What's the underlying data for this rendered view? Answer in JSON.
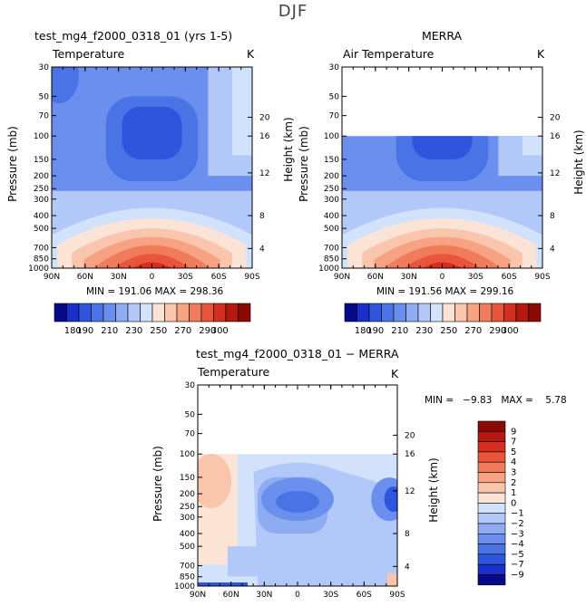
{
  "suptitle": "DJF",
  "palette_abs": [
    "#08088a",
    "#1a2fc8",
    "#2f55dd",
    "#4a73e6",
    "#6a8fee",
    "#8facf3",
    "#b2c8f8",
    "#d3e2fb",
    "#fbe4d6",
    "#f9c6ad",
    "#f6a283",
    "#f17c5c",
    "#e8553a",
    "#d42e1f",
    "#b51810",
    "#8b0a05"
  ],
  "palette_diff": [
    "#08088a",
    "#1a2fc8",
    "#2f55dd",
    "#4a73e6",
    "#6a8fee",
    "#8facf3",
    "#b2c8f8",
    "#d3e2fb",
    "#fbe4d6",
    "#f9c6ad",
    "#f6a283",
    "#f17c5c",
    "#e8553a",
    "#d42e1f",
    "#b51810",
    "#8b0a05"
  ],
  "chart_data": [
    {
      "type": "heatmap",
      "title": "test_mg4_f2000_0318_01 (yrs 1-5)",
      "subtitle_left": "Temperature",
      "subtitle_right": "K",
      "ylabel": "Pressure (mb)",
      "ylabel_right": "Height (km)",
      "x_ticks": [
        "90N",
        "60N",
        "30N",
        "0",
        "30S",
        "60S",
        "90S"
      ],
      "y_ticks": [
        "30",
        "50",
        "70",
        "100",
        "150",
        "200",
        "250",
        "300",
        "400",
        "500",
        "700",
        "850",
        "1000"
      ],
      "y_ticks_right": [
        "20",
        "16",
        "12",
        "8",
        "4"
      ],
      "min_max": "MIN = 191.06   MAX = 298.36",
      "colorbar_labels": [
        "180",
        "190",
        "210",
        "230",
        "250",
        "270",
        "290",
        "300"
      ]
    },
    {
      "type": "heatmap",
      "title": "MERRA",
      "subtitle_left": "Air Temperature",
      "subtitle_right": "K",
      "ylabel": "Pressure (mb)",
      "ylabel_right": "Height (km)",
      "x_ticks": [
        "90N",
        "60N",
        "30N",
        "0",
        "30S",
        "60S",
        "90S"
      ],
      "y_ticks": [
        "30",
        "50",
        "70",
        "100",
        "150",
        "200",
        "250",
        "300",
        "400",
        "500",
        "700",
        "850",
        "1000"
      ],
      "y_ticks_right": [
        "20",
        "16",
        "12",
        "8",
        "4"
      ],
      "min_max": "MIN = 191.56   MAX = 299.16",
      "colorbar_labels": [
        "180",
        "190",
        "210",
        "230",
        "250",
        "270",
        "290",
        "300"
      ]
    },
    {
      "type": "heatmap",
      "title": "test_mg4_f2000_0318_01 − MERRA",
      "subtitle_left": "Temperature",
      "subtitle_right": "K",
      "ylabel": "Pressure (mb)",
      "ylabel_right": "Height (km)",
      "x_ticks": [
        "90N",
        "60N",
        "30N",
        "0",
        "30S",
        "60S",
        "90S"
      ],
      "y_ticks": [
        "30",
        "50",
        "70",
        "100",
        "150",
        "200",
        "250",
        "300",
        "400",
        "500",
        "700",
        "850",
        "1000"
      ],
      "y_ticks_right": [
        "20",
        "16",
        "12",
        "8",
        "4"
      ],
      "min_max": "MIN =   −9.83   MAX =    5.78",
      "colorbar_labels": [
        "9",
        "7",
        "5",
        "4",
        "3",
        "2",
        "1",
        "0",
        "−1",
        "−2",
        "−3",
        "−4",
        "−5",
        "−7",
        "−9"
      ]
    }
  ]
}
